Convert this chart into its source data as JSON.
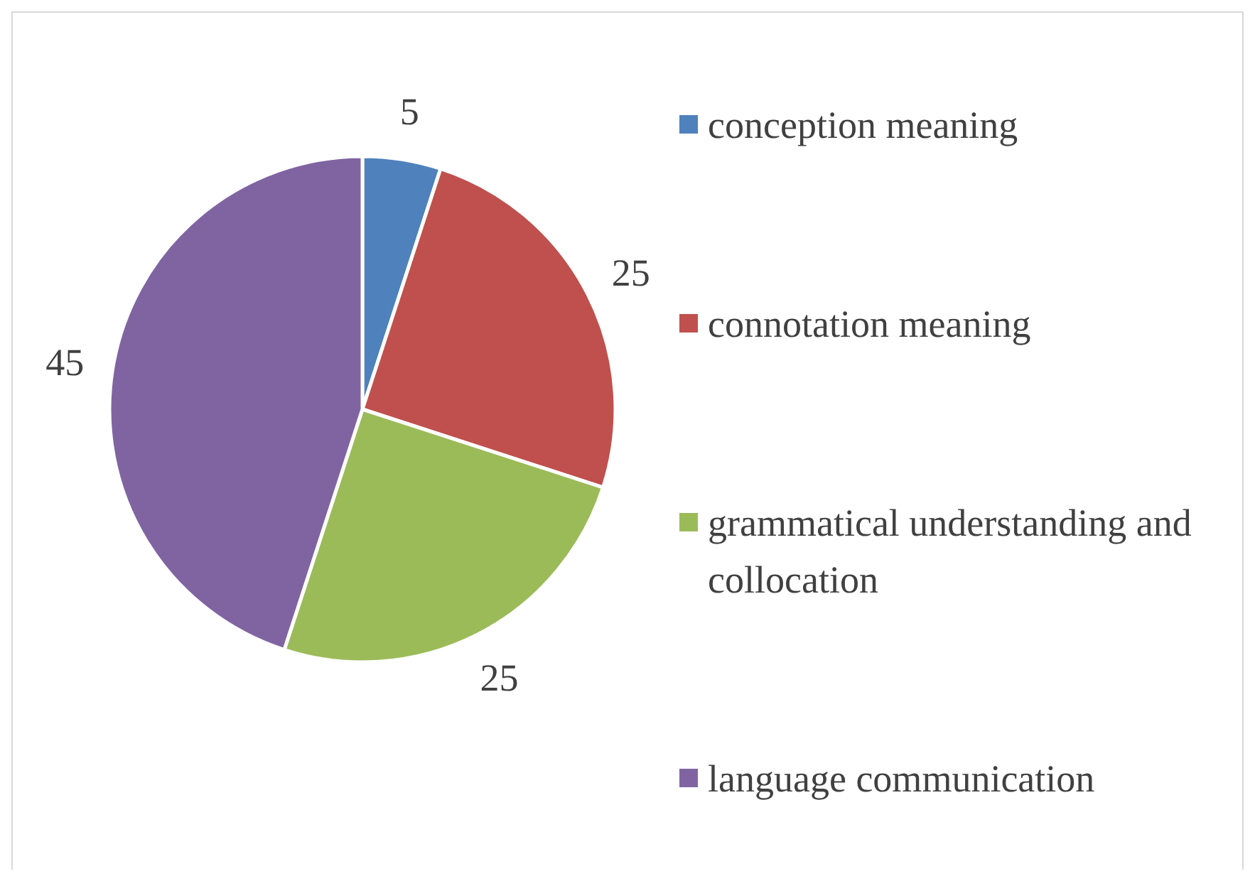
{
  "chart_data": {
    "type": "pie",
    "categories": [
      "conception meaning",
      "connotation meaning",
      "grammatical understanding and collocation",
      "language communication"
    ],
    "values": [
      5,
      25,
      25,
      45
    ],
    "colors": [
      "#4f81bd",
      "#c0504d",
      "#9bbb59",
      "#8064a2"
    ],
    "data_labels": true,
    "legend": "right"
  }
}
